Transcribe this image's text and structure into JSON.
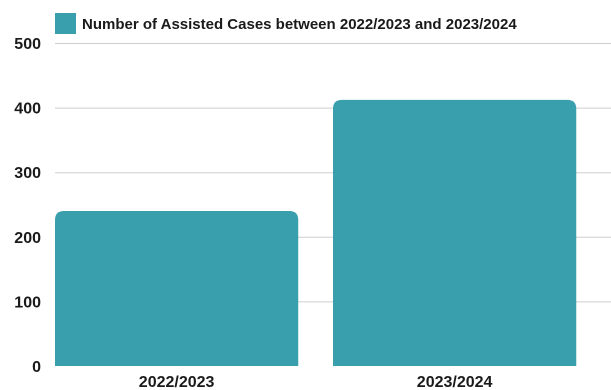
{
  "chart_data": {
    "type": "bar",
    "categories": [
      "2022/2023",
      "2023/2024"
    ],
    "series": [
      {
        "name": "Number of Assisted Cases between 2022/2023 and 2023/2024",
        "values": [
          240,
          412
        ],
        "color": "#3a9fad"
      }
    ],
    "title": "",
    "xlabel": "",
    "ylabel": "",
    "ylim": [
      0,
      500
    ],
    "yticks": [
      "0",
      "100",
      "200",
      "300",
      "400",
      "500"
    ],
    "grid": true,
    "legend": "top"
  }
}
